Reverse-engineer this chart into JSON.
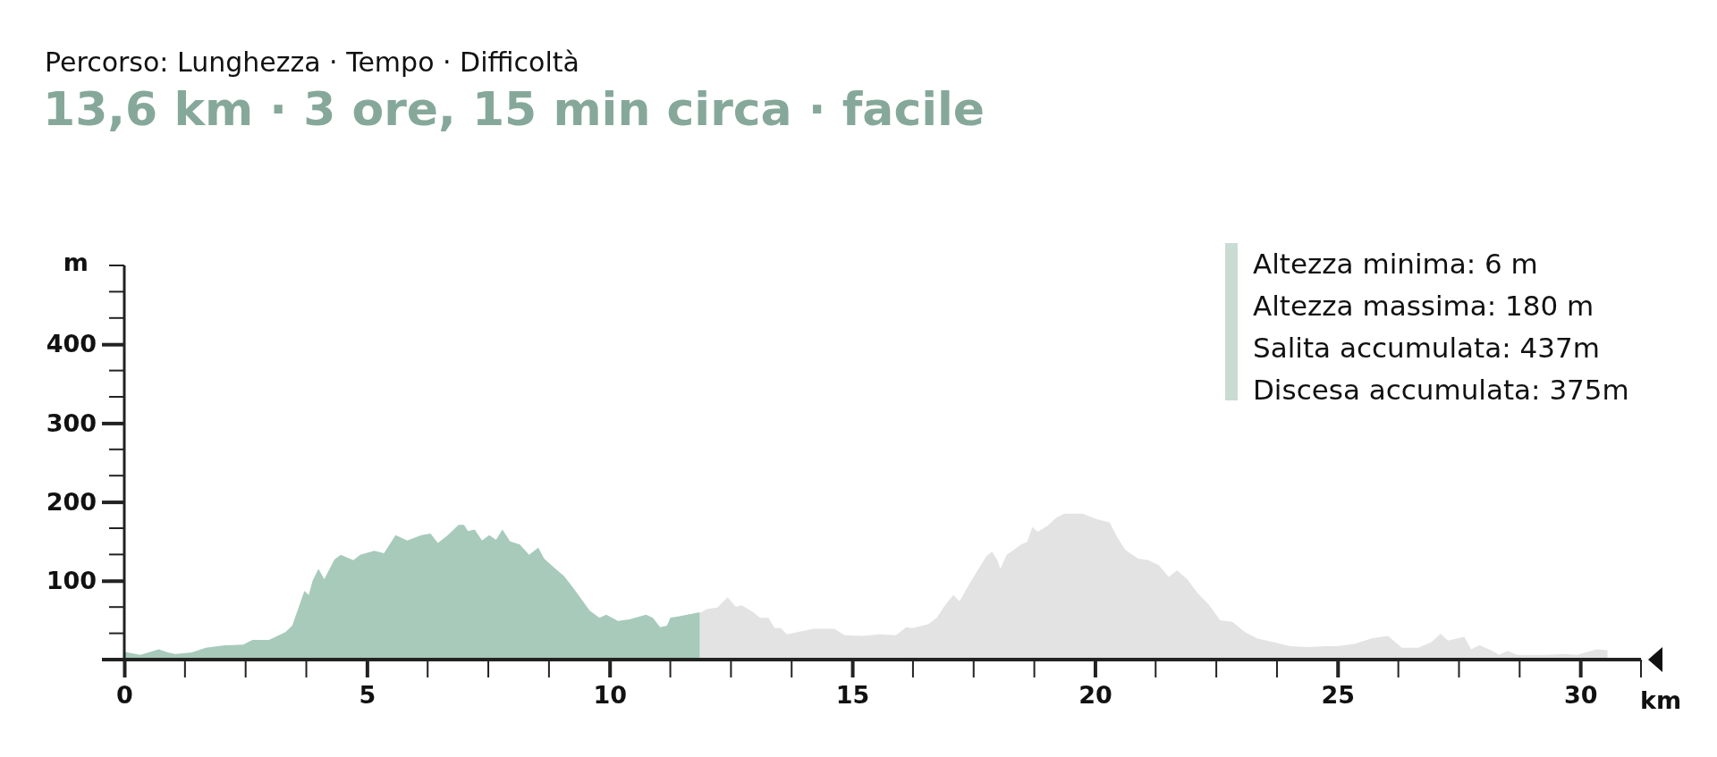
{
  "chart_data": {
    "type": "area",
    "title": "Percorso: Lunghezza · Tempo · Difficoltà",
    "subtitle": "13,6 km · 3 ore, 15 min circa · facile",
    "xlabel": "km",
    "ylabel": "m",
    "annotations": [
      "Altezza minima: 6 m",
      "Altezza massima: 180 m",
      "Salita accumulata: 437m",
      "Discesa accumulata: 375m"
    ],
    "series": [
      {
        "color": "#a7cabb",
        "x": [
          0,
          0.33,
          0.71,
          0.9,
          1.05,
          1.39,
          1.68,
          2.07,
          2.45,
          2.64,
          2.98,
          3.32,
          3.46,
          3.71,
          3.8,
          3.88,
          4.0,
          4.12,
          4.33,
          4.46,
          4.72,
          4.86,
          5.15,
          5.35,
          5.59,
          5.83,
          6.12,
          6.31,
          6.46,
          6.65,
          6.89,
          7.0,
          7.08,
          7.22,
          7.37,
          7.52,
          7.66,
          7.79,
          7.95,
          8.15,
          8.34,
          8.53,
          8.65,
          8.87,
          9.06,
          9.26,
          9.59,
          9.79,
          9.93,
          10.17,
          10.41,
          10.75,
          10.89,
          11.04,
          11.18,
          11.25,
          11.53,
          11.86
        ],
        "values": [
          10,
          6,
          13,
          9,
          7,
          9,
          15,
          18,
          19,
          25,
          25,
          35,
          43,
          87,
          82,
          100,
          115,
          102,
          127,
          133,
          126,
          133,
          138,
          135,
          158,
          151,
          158,
          160,
          148,
          157,
          171,
          171,
          163,
          165,
          151,
          158,
          152,
          165,
          150,
          146,
          133,
          142,
          128,
          116,
          106,
          90,
          62,
          53,
          57,
          49,
          51,
          57,
          53,
          41,
          43,
          53,
          56,
          60
        ]
      },
      {
        "color": "#e3e3e3",
        "x": [
          11.86,
          12.0,
          12.22,
          12.43,
          12.6,
          12.72,
          12.94,
          13.1,
          13.27,
          13.4,
          13.53,
          13.65,
          13.87,
          14.2,
          14.63,
          14.84,
          15.22,
          15.56,
          15.9,
          16.11,
          16.24,
          16.57,
          16.74,
          16.91,
          17.08,
          17.21,
          17.42,
          17.63,
          17.76,
          17.88,
          17.99,
          18.05,
          18.18,
          18.48,
          18.6,
          18.71,
          18.82,
          19.03,
          19.2,
          19.37,
          19.75,
          20.04,
          20.3,
          20.47,
          20.63,
          20.89,
          21.1,
          21.31,
          21.52,
          21.69,
          21.9,
          22.12,
          22.33,
          22.58,
          22.83,
          23.09,
          23.34,
          23.68,
          24.02,
          24.36,
          24.78,
          25.0,
          25.36,
          25.7,
          26.04,
          26.32,
          26.66,
          26.93,
          27.12,
          27.27,
          27.41,
          27.61,
          27.75,
          27.92,
          28.16,
          28.33,
          28.5,
          28.7,
          28.98,
          29.32,
          29.66,
          29.93,
          30.34,
          30.56
        ],
        "values": [
          59,
          64,
          66,
          79,
          67,
          69,
          61,
          53,
          53,
          40,
          40,
          32,
          35,
          39,
          39,
          31,
          30,
          32,
          31,
          41,
          40,
          45,
          53,
          69,
          82,
          74,
          97,
          118,
          131,
          137,
          126,
          115,
          133,
          146,
          149,
          168,
          162,
          170,
          180,
          185,
          185,
          178,
          174,
          154,
          139,
          128,
          126,
          120,
          105,
          113,
          102,
          84,
          71,
          50,
          48,
          35,
          27,
          22,
          17,
          16,
          17,
          17,
          20,
          27,
          30,
          15,
          15,
          22,
          33,
          24,
          26,
          29,
          13,
          18,
          12,
          6,
          11,
          6,
          6,
          6,
          7,
          6,
          13,
          12
        ]
      }
    ],
    "xlim": [
      0,
      31.25
    ],
    "xticks": [
      0,
      5,
      10,
      15,
      20,
      25,
      30
    ],
    "ylim": [
      0,
      500
    ],
    "yticks": [
      100,
      200,
      300,
      400
    ],
    "grid": false
  }
}
